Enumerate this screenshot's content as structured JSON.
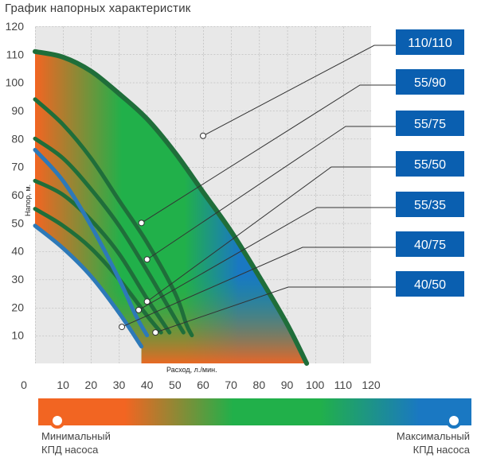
{
  "title": "График напорных характеристик",
  "chart_data": {
    "type": "line",
    "title": "График напорных характеристик",
    "xlabel": "Расход, л./мин.",
    "ylabel": "Напор, м.",
    "xlim": [
      0,
      120
    ],
    "ylim": [
      0,
      120
    ],
    "x_ticks": [
      "0",
      "10",
      "20",
      "30",
      "40",
      "50",
      "60",
      "70",
      "80",
      "90",
      "100",
      "110",
      "120"
    ],
    "y_ticks": [
      "10",
      "20",
      "30",
      "40",
      "50",
      "60",
      "70",
      "80",
      "90",
      "100",
      "110",
      "120"
    ],
    "grid": true,
    "series": [
      {
        "name": "110/110",
        "color": "#1f6e3a",
        "points": [
          [
            0,
            111
          ],
          [
            10,
            109
          ],
          [
            20,
            104
          ],
          [
            30,
            96
          ],
          [
            40,
            87
          ],
          [
            50,
            75
          ],
          [
            60,
            61
          ],
          [
            70,
            47
          ],
          [
            80,
            31
          ],
          [
            90,
            14
          ],
          [
            97,
            0
          ]
        ]
      },
      {
        "name": "55/90",
        "color": "#1f6e3a",
        "points": [
          [
            0,
            94
          ],
          [
            10,
            85
          ],
          [
            20,
            73
          ],
          [
            30,
            58
          ],
          [
            40,
            43
          ],
          [
            50,
            25
          ],
          [
            54,
            14
          ],
          [
            56,
            10
          ]
        ]
      },
      {
        "name": "55/75",
        "color": "#1f6e3a",
        "points": [
          [
            0,
            80
          ],
          [
            10,
            73
          ],
          [
            20,
            62
          ],
          [
            30,
            49
          ],
          [
            40,
            33
          ],
          [
            50,
            16
          ],
          [
            53,
            11
          ]
        ]
      },
      {
        "name": "55/50",
        "color": "#1f6e3a",
        "points": [
          [
            0,
            65
          ],
          [
            10,
            60
          ],
          [
            20,
            51
          ],
          [
            30,
            39
          ],
          [
            40,
            23
          ],
          [
            48,
            11
          ]
        ]
      },
      {
        "name": "55/35",
        "color": "#1f6e3a",
        "points": [
          [
            0,
            55
          ],
          [
            10,
            49
          ],
          [
            20,
            41
          ],
          [
            30,
            30
          ],
          [
            40,
            17
          ],
          [
            45,
            11
          ]
        ]
      },
      {
        "name": "40/75",
        "color": "#2d79b8",
        "points": [
          [
            0,
            76
          ],
          [
            10,
            65
          ],
          [
            20,
            49
          ],
          [
            30,
            30
          ],
          [
            36,
            17
          ],
          [
            40,
            10
          ]
        ]
      },
      {
        "name": "40/50",
        "color": "#2d79b8",
        "points": [
          [
            0,
            49
          ],
          [
            10,
            41
          ],
          [
            20,
            31
          ],
          [
            30,
            18
          ],
          [
            38,
            6
          ]
        ]
      }
    ],
    "markers": [
      {
        "series": "110/110",
        "x": 60,
        "y": 81
      },
      {
        "series": "55/90",
        "x": 38,
        "y": 50
      },
      {
        "series": "55/75",
        "x": 40,
        "y": 37
      },
      {
        "series": "55/50",
        "x": 40,
        "y": 22
      },
      {
        "series": "55/35",
        "x": 37,
        "y": 19
      },
      {
        "series": "40/75",
        "x": 31,
        "y": 13
      },
      {
        "series": "40/50",
        "x": 43,
        "y": 11
      }
    ],
    "legend": [
      "110/110",
      "55/90",
      "55/75",
      "55/50",
      "55/35",
      "40/75",
      "40/50"
    ],
    "legend_color": "#0a5fb0"
  },
  "efficiency_scale": {
    "min_label_line1": "Минимальный",
    "min_label_line2": "КПД насоса",
    "max_label_line1": "Максимальный",
    "max_label_line2": "КПД насоса",
    "colors": [
      "#f26522",
      "#21b04a",
      "#1a78c2"
    ]
  }
}
